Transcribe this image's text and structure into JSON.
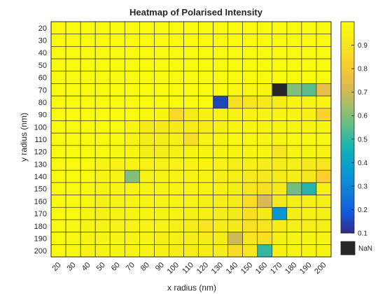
{
  "chart_data": {
    "type": "heatmap",
    "title": "Heatmap of Polarised Intensity",
    "xlabel": "x radius (nm)",
    "ylabel": "y radius (nm)",
    "x": [
      "20",
      "30",
      "40",
      "50",
      "60",
      "70",
      "80",
      "90",
      "100",
      "110",
      "120",
      "130",
      "140",
      "150",
      "160",
      "170",
      "180",
      "190",
      "200"
    ],
    "y": [
      "20",
      "30",
      "40",
      "50",
      "60",
      "70",
      "80",
      "90",
      "100",
      "110",
      "120",
      "130",
      "140",
      "150",
      "160",
      "170",
      "180",
      "190",
      "200"
    ],
    "values": [
      [
        0.99,
        0.99,
        0.99,
        0.99,
        0.99,
        0.99,
        0.99,
        0.99,
        0.99,
        0.99,
        0.99,
        0.99,
        0.99,
        0.99,
        0.99,
        0.99,
        0.99,
        0.99,
        0.99
      ],
      [
        0.99,
        0.99,
        0.99,
        0.99,
        0.99,
        0.99,
        0.99,
        0.99,
        0.99,
        0.99,
        0.99,
        0.99,
        0.99,
        0.99,
        0.99,
        0.99,
        0.99,
        0.99,
        0.99
      ],
      [
        0.99,
        0.99,
        0.99,
        0.99,
        0.99,
        0.99,
        0.99,
        0.99,
        0.99,
        0.99,
        0.99,
        0.99,
        0.99,
        0.99,
        0.99,
        0.99,
        0.99,
        0.99,
        0.99
      ],
      [
        0.99,
        0.99,
        0.99,
        0.99,
        0.99,
        0.99,
        0.99,
        0.99,
        0.99,
        0.99,
        0.99,
        0.99,
        0.99,
        0.99,
        0.99,
        0.99,
        0.99,
        0.99,
        0.99
      ],
      [
        0.99,
        0.99,
        0.99,
        0.99,
        0.99,
        0.99,
        0.99,
        0.99,
        0.99,
        0.99,
        0.99,
        0.99,
        0.99,
        0.99,
        0.99,
        0.99,
        0.99,
        0.99,
        0.99
      ],
      [
        0.99,
        0.99,
        0.99,
        0.99,
        0.99,
        0.99,
        0.99,
        0.99,
        0.99,
        0.99,
        0.99,
        0.99,
        0.98,
        0.98,
        0.97,
        null,
        0.6,
        0.55,
        0.75
      ],
      [
        0.99,
        0.99,
        0.99,
        0.99,
        0.99,
        0.99,
        0.99,
        0.99,
        0.99,
        0.99,
        0.99,
        0.15,
        0.88,
        0.9,
        0.92,
        0.94,
        0.97,
        0.96,
        0.97
      ],
      [
        0.99,
        0.99,
        0.99,
        0.99,
        0.99,
        0.99,
        0.98,
        0.97,
        0.86,
        0.93,
        0.95,
        0.96,
        0.96,
        0.96,
        0.96,
        0.96,
        0.96,
        0.95,
        0.83
      ],
      [
        0.99,
        0.99,
        0.99,
        0.99,
        0.99,
        0.97,
        0.92,
        0.92,
        0.92,
        0.93,
        0.93,
        0.95,
        0.97,
        0.97,
        0.96,
        0.96,
        0.96,
        0.97,
        0.97
      ],
      [
        0.99,
        0.99,
        0.99,
        0.99,
        0.99,
        0.96,
        0.94,
        0.94,
        0.95,
        0.88,
        0.97,
        0.97,
        0.98,
        0.98,
        0.97,
        0.97,
        0.98,
        0.98,
        0.98
      ],
      [
        0.99,
        0.99,
        0.99,
        0.99,
        0.98,
        0.97,
        0.94,
        0.93,
        0.95,
        0.97,
        0.97,
        0.96,
        0.97,
        0.97,
        0.97,
        0.9,
        0.97,
        0.97,
        0.97
      ],
      [
        0.99,
        0.99,
        0.99,
        0.97,
        0.96,
        0.96,
        0.96,
        0.96,
        0.96,
        0.97,
        0.97,
        0.96,
        0.95,
        0.95,
        0.94,
        0.94,
        0.95,
        0.92,
        0.9
      ],
      [
        0.99,
        0.99,
        0.99,
        0.97,
        0.96,
        0.6,
        0.96,
        0.96,
        0.96,
        0.96,
        0.96,
        0.95,
        0.95,
        0.93,
        0.92,
        0.93,
        0.94,
        0.91,
        0.82
      ],
      [
        0.99,
        0.99,
        0.98,
        0.96,
        0.96,
        0.96,
        0.96,
        0.96,
        0.96,
        0.96,
        0.96,
        0.95,
        0.94,
        0.9,
        0.88,
        0.92,
        0.58,
        0.48,
        0.95
      ],
      [
        0.99,
        0.99,
        0.98,
        0.95,
        0.96,
        0.96,
        0.97,
        0.96,
        0.96,
        0.96,
        0.95,
        0.94,
        0.93,
        0.87,
        0.72,
        0.92,
        0.94,
        0.95,
        0.95
      ],
      [
        0.99,
        0.99,
        0.97,
        0.95,
        0.96,
        0.96,
        0.97,
        0.96,
        0.96,
        0.95,
        0.95,
        0.93,
        0.92,
        0.88,
        0.92,
        0.35,
        0.94,
        0.95,
        0.95
      ],
      [
        0.99,
        0.98,
        0.97,
        0.96,
        0.96,
        0.96,
        0.97,
        0.96,
        0.95,
        0.94,
        0.9,
        0.93,
        0.92,
        0.89,
        0.9,
        0.93,
        0.95,
        0.95,
        0.95
      ],
      [
        0.99,
        0.98,
        0.96,
        0.96,
        0.96,
        0.96,
        0.96,
        0.95,
        0.95,
        0.94,
        0.94,
        0.93,
        0.7,
        0.9,
        0.88,
        0.95,
        0.96,
        0.96,
        0.96
      ],
      [
        0.99,
        0.98,
        0.96,
        0.96,
        0.96,
        0.96,
        0.96,
        0.95,
        0.93,
        0.93,
        0.94,
        0.93,
        0.86,
        0.9,
        0.5,
        0.95,
        0.96,
        0.96,
        0.96
      ]
    ],
    "clim": [
      0.1,
      1.0
    ],
    "colormap": "parula",
    "colorbar_ticks": [
      "0.1",
      "0.2",
      "0.3",
      "0.4",
      "0.5",
      "0.6",
      "0.7",
      "0.8",
      "0.9"
    ],
    "nan_label": "NaN",
    "nan_color": "#262626",
    "grid": true
  }
}
